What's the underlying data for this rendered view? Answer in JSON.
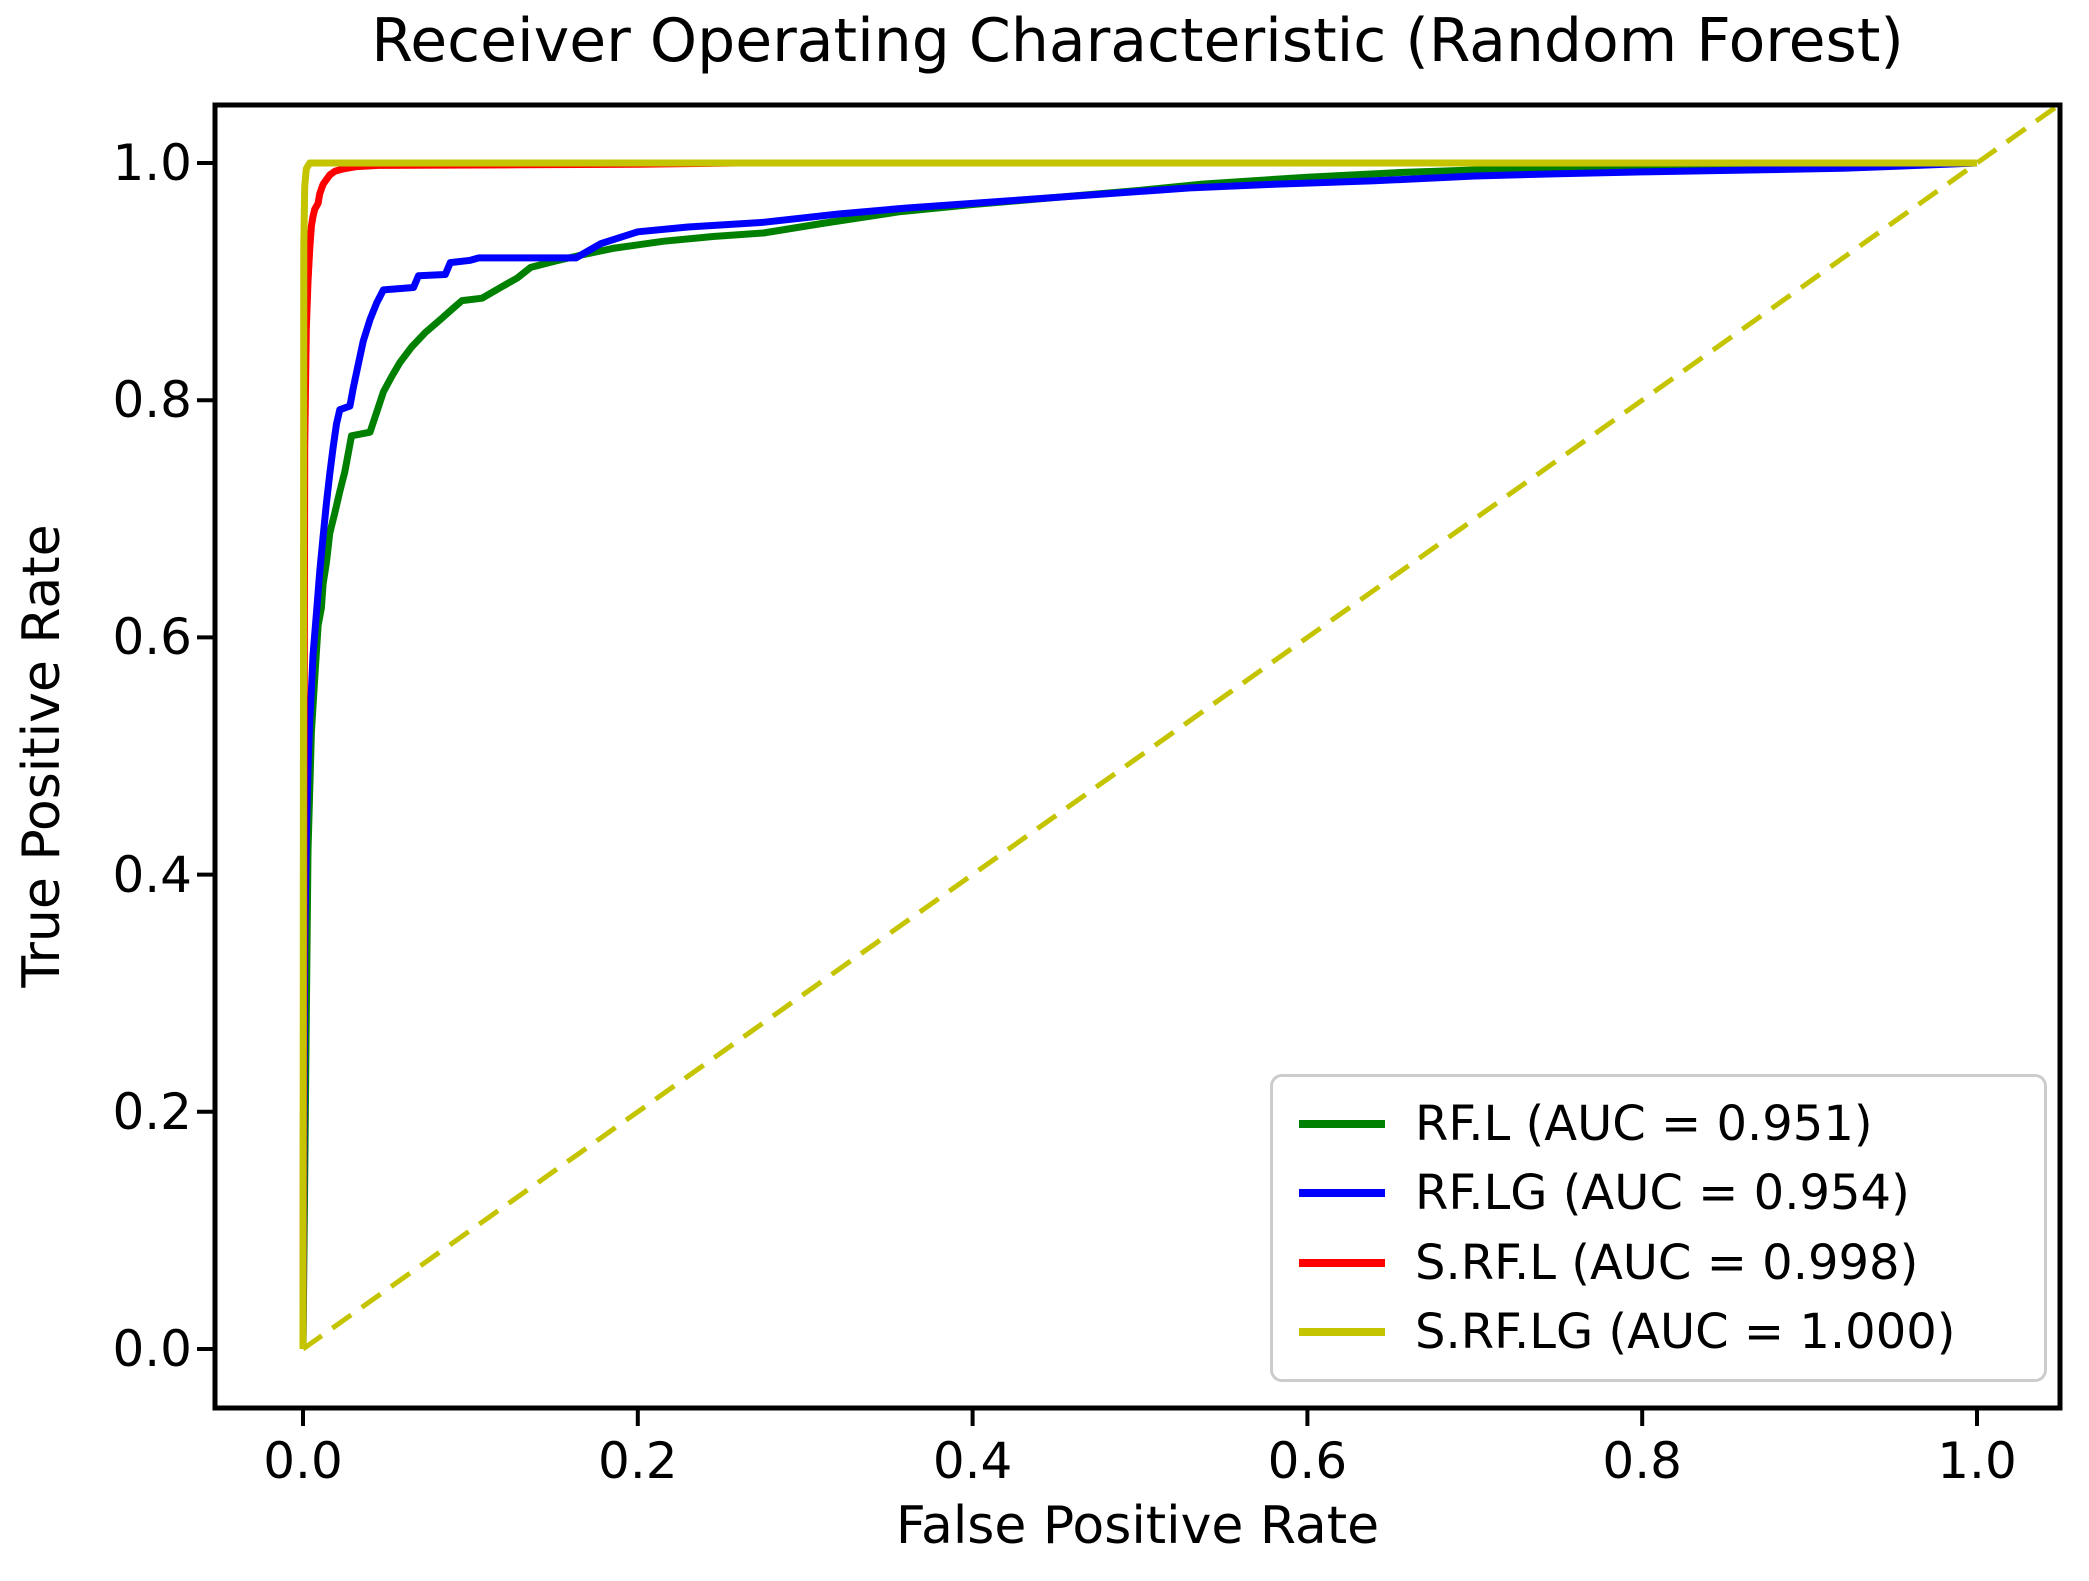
{
  "figure": {
    "title": "Receiver Operating Characteristic (Random Forest)",
    "xlabel": "False Positive Rate",
    "ylabel": "True Positive Rate"
  },
  "chart_data": {
    "type": "line",
    "title": "Receiver Operating Characteristic (Random Forest)",
    "xlabel": "False Positive Rate",
    "ylabel": "True Positive Rate",
    "xlim": [
      -0.05,
      1.05
    ],
    "ylim": [
      -0.05,
      1.05
    ],
    "x_ticks": [
      "0.0",
      "0.2",
      "0.4",
      "0.6",
      "0.8",
      "1.0"
    ],
    "x_tick_values": [
      0,
      0.2,
      0.4,
      0.6,
      0.8,
      1.0
    ],
    "y_ticks": [
      "0.0",
      "0.2",
      "0.4",
      "0.6",
      "0.8",
      "1.0"
    ],
    "y_tick_values": [
      0,
      0.2,
      0.4,
      0.6,
      0.8,
      1.0
    ],
    "grid": false,
    "legend_position": "lower right",
    "series": [
      {
        "name": "RF.L",
        "auc": 0.951,
        "label": "RF.L (AUC = 0.951)",
        "color": "#008000",
        "style": "solid",
        "points": [
          [
            0,
            0
          ],
          [
            0.002,
            0.28
          ],
          [
            0.003,
            0.42
          ],
          [
            0.005,
            0.52
          ],
          [
            0.007,
            0.565
          ],
          [
            0.009,
            0.61
          ],
          [
            0.011,
            0.625
          ],
          [
            0.012,
            0.645
          ],
          [
            0.014,
            0.663
          ],
          [
            0.016,
            0.688
          ],
          [
            0.019,
            0.705
          ],
          [
            0.022,
            0.723
          ],
          [
            0.025,
            0.74
          ],
          [
            0.027,
            0.755
          ],
          [
            0.029,
            0.77
          ],
          [
            0.04,
            0.773
          ],
          [
            0.044,
            0.79
          ],
          [
            0.048,
            0.807
          ],
          [
            0.053,
            0.82
          ],
          [
            0.058,
            0.832
          ],
          [
            0.065,
            0.845
          ],
          [
            0.073,
            0.857
          ],
          [
            0.082,
            0.868
          ],
          [
            0.09,
            0.878
          ],
          [
            0.095,
            0.884
          ],
          [
            0.107,
            0.886
          ],
          [
            0.118,
            0.895
          ],
          [
            0.128,
            0.903
          ],
          [
            0.136,
            0.912
          ],
          [
            0.15,
            0.917
          ],
          [
            0.165,
            0.922
          ],
          [
            0.185,
            0.928
          ],
          [
            0.215,
            0.934
          ],
          [
            0.245,
            0.938
          ],
          [
            0.275,
            0.941
          ],
          [
            0.31,
            0.949
          ],
          [
            0.357,
            0.959
          ],
          [
            0.4,
            0.965
          ],
          [
            0.45,
            0.971
          ],
          [
            0.5,
            0.977
          ],
          [
            0.536,
            0.982
          ],
          [
            0.6,
            0.988
          ],
          [
            0.655,
            0.992
          ],
          [
            0.72,
            0.995
          ],
          [
            0.775,
            0.996
          ],
          [
            0.85,
            0.998
          ],
          [
            0.92,
            0.9995
          ],
          [
            1,
            1
          ]
        ]
      },
      {
        "name": "RF.LG",
        "auc": 0.954,
        "label": "RF.LG (AUC = 0.954)",
        "color": "#0000ff",
        "style": "solid",
        "points": [
          [
            0,
            0
          ],
          [
            0.001,
            0.34
          ],
          [
            0.002,
            0.43
          ],
          [
            0.003,
            0.49
          ],
          [
            0.004,
            0.53
          ],
          [
            0.005,
            0.555
          ],
          [
            0.006,
            0.585
          ],
          [
            0.008,
            0.62
          ],
          [
            0.01,
            0.655
          ],
          [
            0.012,
            0.685
          ],
          [
            0.014,
            0.713
          ],
          [
            0.016,
            0.738
          ],
          [
            0.018,
            0.76
          ],
          [
            0.02,
            0.78
          ],
          [
            0.022,
            0.792
          ],
          [
            0.028,
            0.795
          ],
          [
            0.03,
            0.81
          ],
          [
            0.033,
            0.83
          ],
          [
            0.036,
            0.85
          ],
          [
            0.04,
            0.868
          ],
          [
            0.044,
            0.882
          ],
          [
            0.048,
            0.893
          ],
          [
            0.066,
            0.895
          ],
          [
            0.069,
            0.905
          ],
          [
            0.085,
            0.906
          ],
          [
            0.088,
            0.916
          ],
          [
            0.1,
            0.918
          ],
          [
            0.105,
            0.92
          ],
          [
            0.163,
            0.92
          ],
          [
            0.178,
            0.932
          ],
          [
            0.2,
            0.942
          ],
          [
            0.23,
            0.946
          ],
          [
            0.275,
            0.95
          ],
          [
            0.32,
            0.957
          ],
          [
            0.36,
            0.962
          ],
          [
            0.42,
            0.968
          ],
          [
            0.47,
            0.973
          ],
          [
            0.53,
            0.979
          ],
          [
            0.58,
            0.982
          ],
          [
            0.64,
            0.985
          ],
          [
            0.7,
            0.989
          ],
          [
            0.75,
            0.991
          ],
          [
            0.8,
            0.9925
          ],
          [
            0.86,
            0.994
          ],
          [
            0.92,
            0.9955
          ],
          [
            1,
            1
          ]
        ]
      },
      {
        "name": "S.RF.L",
        "auc": 0.998,
        "label": "S.RF.L (AUC = 0.998)",
        "color": "#ff0000",
        "style": "solid",
        "points": [
          [
            0,
            0
          ],
          [
            0.001,
            0.76
          ],
          [
            0.002,
            0.86
          ],
          [
            0.003,
            0.9
          ],
          [
            0.004,
            0.927
          ],
          [
            0.005,
            0.947
          ],
          [
            0.006,
            0.955
          ],
          [
            0.007,
            0.961
          ],
          [
            0.009,
            0.966
          ],
          [
            0.01,
            0.974
          ],
          [
            0.012,
            0.982
          ],
          [
            0.014,
            0.986
          ],
          [
            0.016,
            0.99
          ],
          [
            0.019,
            0.993
          ],
          [
            0.024,
            0.995
          ],
          [
            0.032,
            0.997
          ],
          [
            0.045,
            0.998
          ],
          [
            0.13,
            0.9985
          ],
          [
            0.2,
            0.999
          ],
          [
            0.26,
            1.0
          ],
          [
            1,
            1
          ]
        ]
      },
      {
        "name": "S.RF.LG",
        "auc": 1.0,
        "label": "S.RF.LG (AUC = 1.000)",
        "color": "#c4c400",
        "style": "solid",
        "points": [
          [
            0,
            0
          ],
          [
            0.0005,
            0.93
          ],
          [
            0.001,
            0.98
          ],
          [
            0.002,
            0.995
          ],
          [
            0.004,
            1.0
          ],
          [
            1,
            1
          ]
        ]
      }
    ],
    "reference_line": {
      "name": "chance-diagonal",
      "color": "#c4c400",
      "style": "dashed",
      "points": [
        [
          0,
          0
        ],
        [
          1.05,
          1.05
        ]
      ]
    }
  },
  "layout_note": ""
}
